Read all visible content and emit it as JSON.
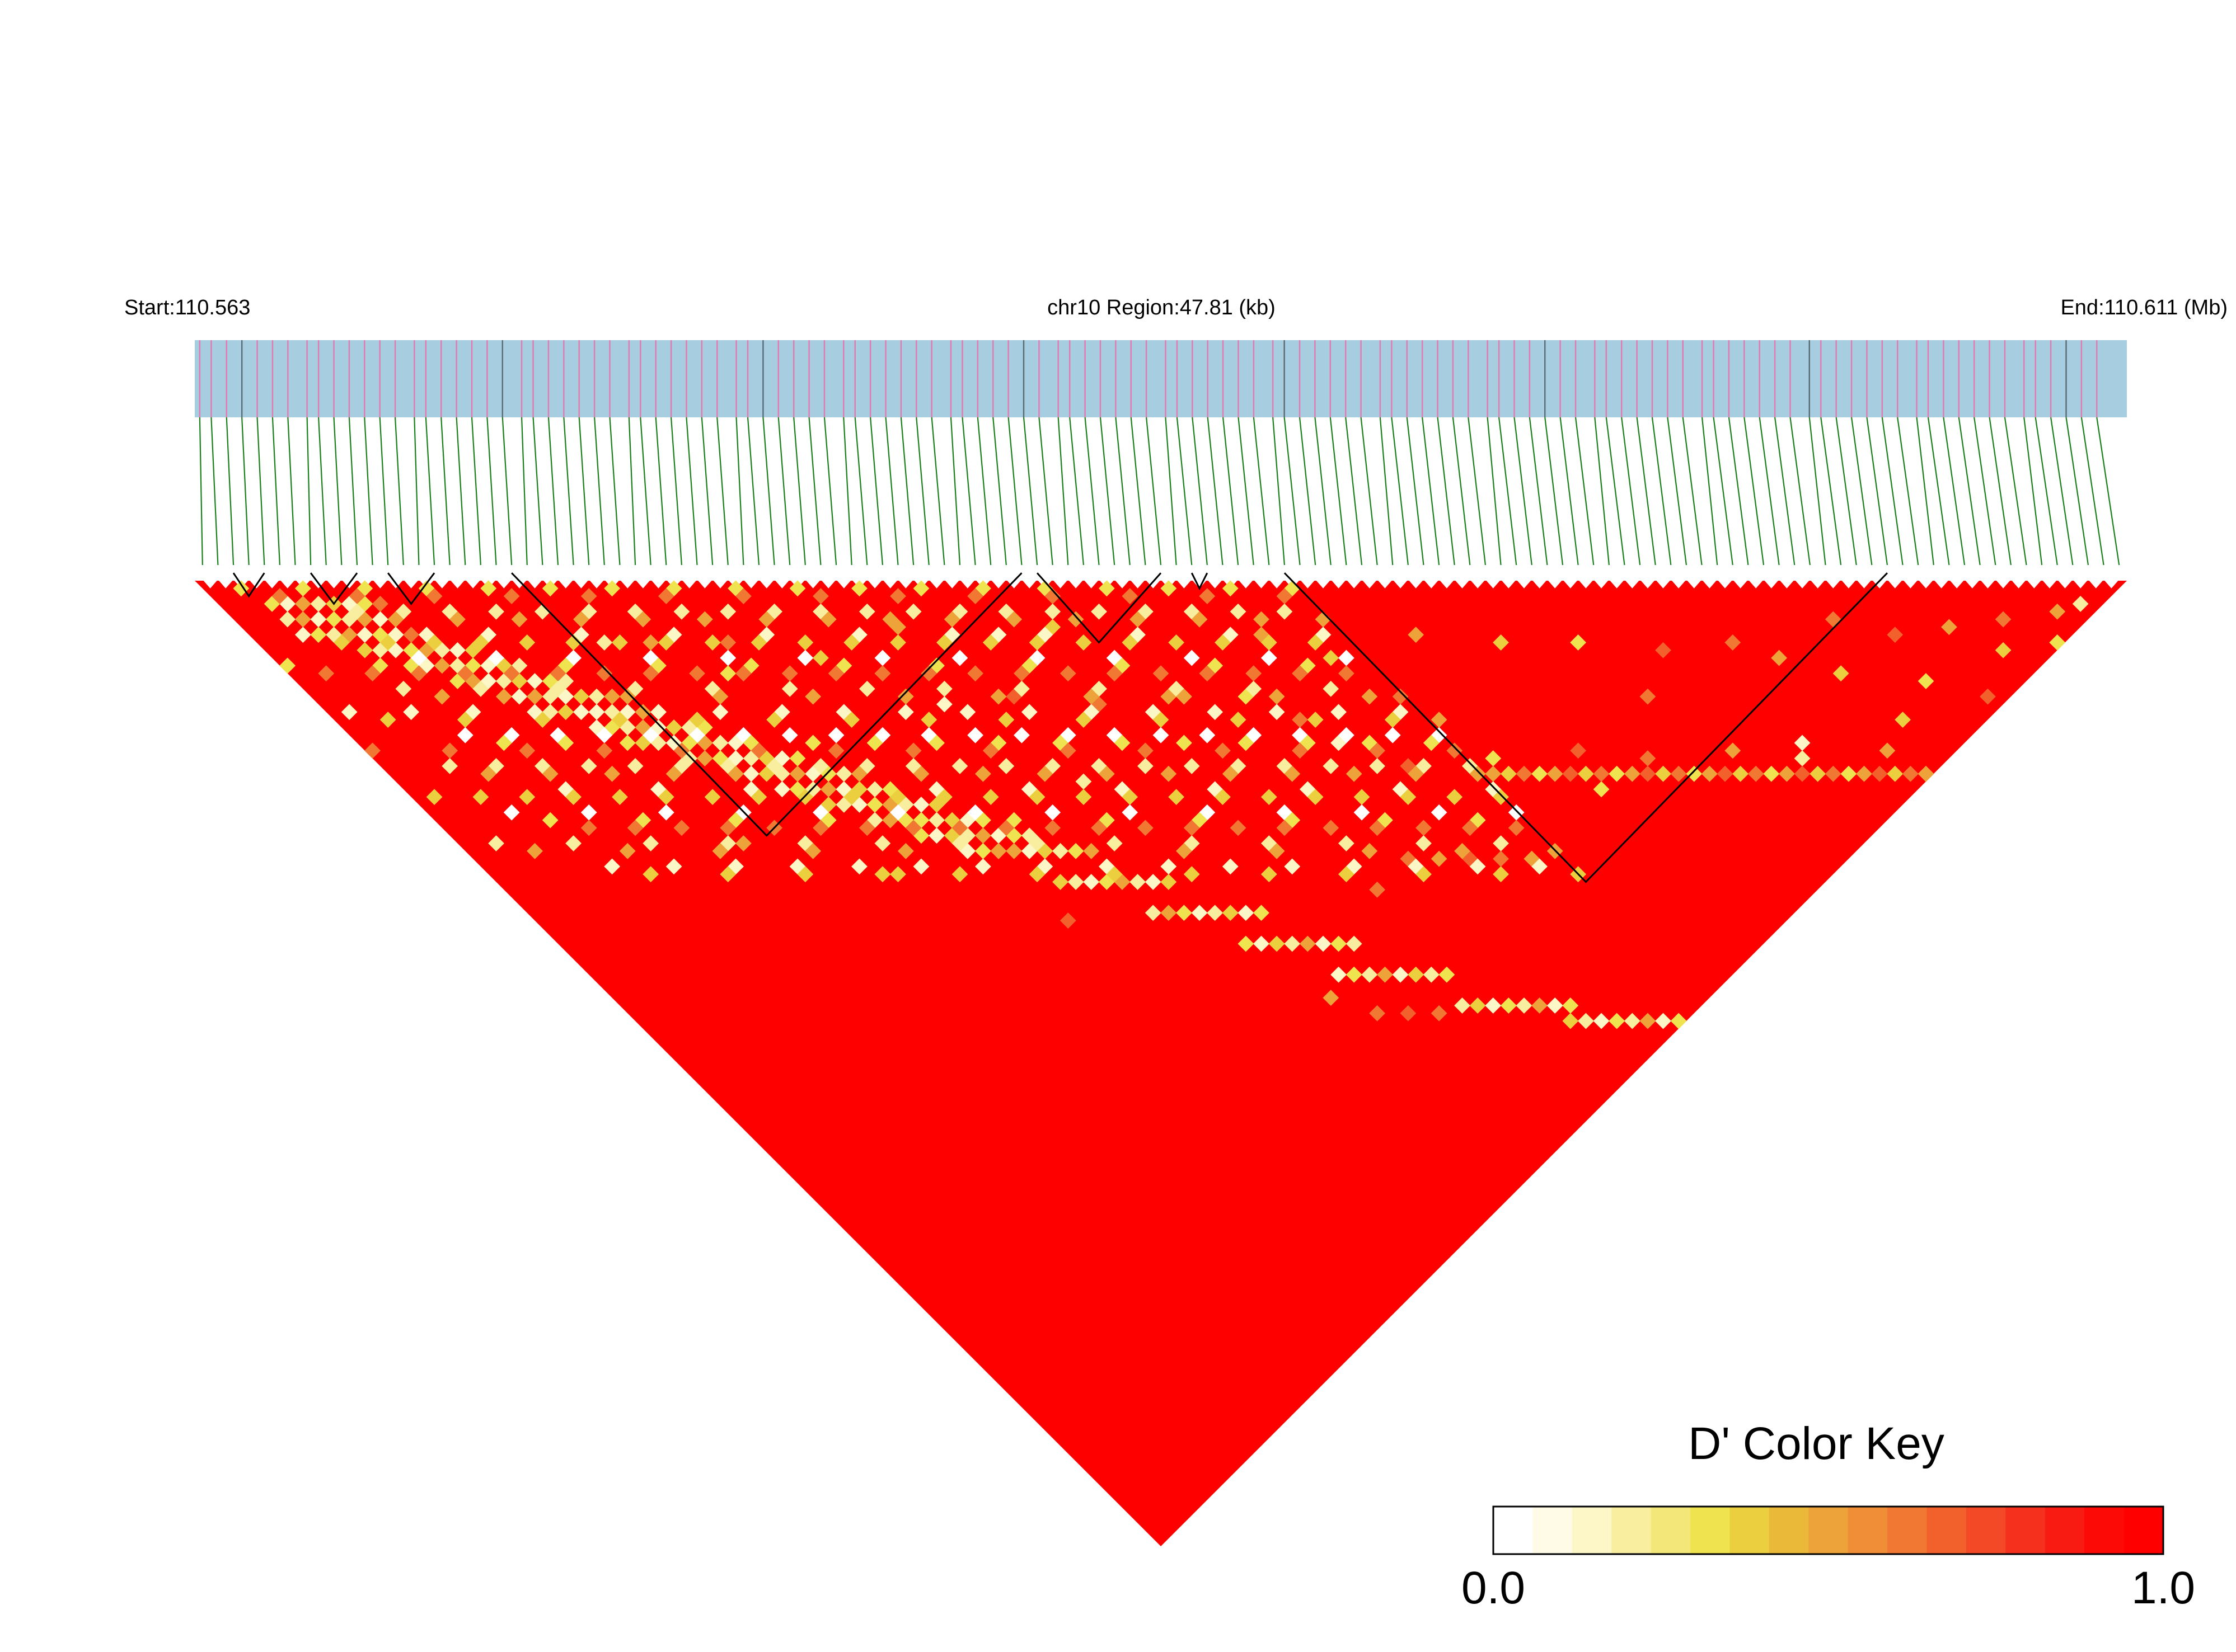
{
  "header": {
    "start_label": "Start:110.563",
    "region_label": "chr10 Region:47.81 (kb)",
    "end_label": "End:110.611 (Mb)"
  },
  "chart_data": {
    "type": "heatmap",
    "title": "",
    "chromosome": "chr10",
    "region_kb": 47.81,
    "start_mb": 110.563,
    "end_mb": 110.611,
    "snp_count": 125,
    "snp_positions_fraction": [
      0.0,
      0.004,
      0.008,
      0.012,
      0.016,
      0.02,
      0.024,
      0.028,
      0.032,
      0.036,
      0.04,
      0.046,
      0.048,
      0.053,
      0.06,
      0.066,
      0.072,
      0.078,
      0.084,
      0.09,
      0.096,
      0.102,
      0.108,
      0.114,
      0.12,
      0.126,
      0.132,
      0.138,
      0.144,
      0.15,
      0.156,
      0.162,
      0.168,
      0.174,
      0.18,
      0.186,
      0.192,
      0.198,
      0.204,
      0.21,
      0.216,
      0.222,
      0.228,
      0.234,
      0.24,
      0.246,
      0.252,
      0.258,
      0.264,
      0.27,
      0.276,
      0.282,
      0.288,
      0.294,
      0.3,
      0.306,
      0.312,
      0.318,
      0.324,
      0.33,
      0.336,
      0.342,
      0.348,
      0.354,
      0.36,
      0.366,
      0.372,
      0.378,
      0.384,
      0.39,
      0.396,
      0.402,
      0.408,
      0.414,
      0.42,
      0.426,
      0.432,
      0.438,
      0.444,
      0.45,
      0.456,
      0.462,
      0.468,
      0.474,
      0.48,
      0.486,
      0.492,
      0.498,
      0.504,
      0.51,
      0.516,
      0.522,
      0.528,
      0.534,
      0.54,
      0.546,
      0.552,
      0.558,
      0.564,
      0.57,
      0.576,
      0.582,
      0.588,
      0.594,
      0.6,
      0.606,
      0.612,
      0.618,
      0.624,
      0.63,
      0.636,
      0.642,
      0.648,
      0.654,
      0.66,
      0.666,
      0.672,
      0.678,
      0.684,
      0.69,
      0.696,
      0.702,
      0.708,
      0.714,
      0.72
    ],
    "ld_blocks": [
      [
        2,
        4
      ],
      [
        7,
        10
      ],
      [
        12,
        15
      ],
      [
        20,
        53
      ],
      [
        54,
        62
      ],
      [
        64,
        65
      ],
      [
        70,
        109
      ]
    ],
    "low_dprime_cells": [
      [
        3,
        6,
        0.3
      ],
      [
        4,
        7,
        0.1
      ],
      [
        5,
        8,
        0.5
      ],
      [
        6,
        9,
        0.2
      ],
      [
        7,
        10,
        0.4
      ],
      [
        8,
        11,
        0.1
      ],
      [
        9,
        12,
        0.3
      ],
      [
        10,
        13,
        0.6
      ],
      [
        3,
        8,
        0.2
      ],
      [
        4,
        9,
        0.5
      ],
      [
        5,
        10,
        0.1
      ],
      [
        6,
        11,
        0.3
      ],
      [
        7,
        12,
        0.2
      ],
      [
        8,
        13,
        0.5
      ],
      [
        9,
        14,
        0.1
      ],
      [
        10,
        15,
        0.4
      ],
      [
        4,
        11,
        0.3
      ],
      [
        5,
        12,
        0.2
      ],
      [
        6,
        13,
        0.5
      ],
      [
        7,
        14,
        0.1
      ],
      [
        8,
        15,
        0.3
      ],
      [
        9,
        16,
        0.2
      ],
      [
        10,
        17,
        0.6
      ],
      [
        11,
        18,
        0.1
      ],
      [
        6,
        15,
        0.4
      ],
      [
        7,
        16,
        0.2
      ],
      [
        8,
        17,
        0.1
      ],
      [
        9,
        18,
        0.3
      ],
      [
        10,
        19,
        0.5
      ],
      [
        11,
        20,
        0.2
      ],
      [
        12,
        21,
        0.1
      ],
      [
        13,
        22,
        0.4
      ],
      [
        8,
        19,
        0.3
      ],
      [
        9,
        20,
        0.1
      ],
      [
        10,
        21,
        0.5
      ],
      [
        11,
        22,
        0.2
      ],
      [
        12,
        23,
        0.3
      ],
      [
        13,
        24,
        0.1
      ],
      [
        14,
        25,
        0.4
      ],
      [
        15,
        26,
        0.2
      ],
      [
        10,
        23,
        0.3
      ],
      [
        11,
        24,
        0.5
      ],
      [
        12,
        25,
        0.1
      ],
      [
        13,
        26,
        0.2
      ],
      [
        14,
        27,
        0.4
      ],
      [
        15,
        28,
        0.1
      ],
      [
        16,
        29,
        0.3
      ],
      [
        17,
        30,
        0.2
      ],
      [
        12,
        27,
        0.5
      ],
      [
        13,
        28,
        0.1
      ],
      [
        14,
        29,
        0.3
      ],
      [
        15,
        30,
        0.2
      ],
      [
        16,
        31,
        0.1
      ],
      [
        17,
        32,
        0.4
      ],
      [
        18,
        33,
        0.2
      ],
      [
        19,
        34,
        0.5
      ],
      [
        14,
        31,
        0.2
      ],
      [
        15,
        32,
        0.4
      ],
      [
        16,
        33,
        0.1
      ],
      [
        17,
        34,
        0.3
      ],
      [
        18,
        35,
        0.2
      ],
      [
        19,
        36,
        0.1
      ],
      [
        20,
        37,
        0.5
      ],
      [
        21,
        38,
        0.3
      ],
      [
        16,
        35,
        0.1
      ],
      [
        17,
        36,
        0.3
      ],
      [
        18,
        37,
        0.2
      ],
      [
        19,
        38,
        0.5
      ],
      [
        20,
        39,
        0.1
      ],
      [
        21,
        40,
        0.4
      ],
      [
        22,
        41,
        0.2
      ],
      [
        23,
        42,
        0.3
      ],
      [
        18,
        39,
        0.4
      ],
      [
        19,
        40,
        0.2
      ],
      [
        20,
        41,
        0.1
      ],
      [
        21,
        42,
        0.3
      ],
      [
        22,
        43,
        0.5
      ],
      [
        23,
        44,
        0.2
      ],
      [
        24,
        45,
        0.1
      ],
      [
        25,
        46,
        0.4
      ],
      [
        20,
        43,
        0.2
      ],
      [
        21,
        44,
        0.5
      ],
      [
        22,
        45,
        0.3
      ],
      [
        23,
        46,
        0.1
      ],
      [
        24,
        47,
        0.2
      ],
      [
        25,
        48,
        0.4
      ],
      [
        26,
        49,
        0.1
      ],
      [
        27,
        50,
        0.3
      ],
      [
        22,
        47,
        0.3
      ],
      [
        23,
        48,
        0.1
      ],
      [
        24,
        49,
        0.4
      ],
      [
        25,
        50,
        0.2
      ],
      [
        26,
        51,
        0.5
      ],
      [
        27,
        52,
        0.1
      ],
      [
        28,
        53,
        0.3
      ],
      [
        29,
        54,
        0.2
      ],
      [
        24,
        51,
        0.1
      ],
      [
        25,
        52,
        0.3
      ],
      [
        26,
        53,
        0.2
      ],
      [
        27,
        54,
        0.5
      ],
      [
        28,
        55,
        0.1
      ],
      [
        29,
        56,
        0.4
      ],
      [
        30,
        57,
        0.2
      ],
      [
        31,
        58,
        0.3
      ],
      [
        26,
        55,
        0.4
      ],
      [
        27,
        56,
        0.2
      ],
      [
        28,
        57,
        0.1
      ],
      [
        29,
        58,
        0.3
      ],
      [
        30,
        59,
        0.5
      ],
      [
        31,
        60,
        0.2
      ],
      [
        32,
        61,
        0.1
      ],
      [
        33,
        62,
        0.4
      ],
      [
        28,
        59,
        0.2
      ],
      [
        29,
        60,
        0.5
      ],
      [
        30,
        61,
        0.3
      ],
      [
        31,
        62,
        0.1
      ],
      [
        32,
        63,
        0.2
      ],
      [
        33,
        64,
        0.4
      ],
      [
        34,
        65,
        0.1
      ],
      [
        35,
        66,
        0.3
      ],
      [
        30,
        63,
        0.3
      ],
      [
        31,
        64,
        0.1
      ],
      [
        32,
        65,
        0.4
      ],
      [
        33,
        66,
        0.2
      ],
      [
        34,
        67,
        0.5
      ],
      [
        35,
        68,
        0.1
      ],
      [
        36,
        69,
        0.3
      ],
      [
        37,
        70,
        0.2
      ],
      [
        32,
        67,
        0.1
      ],
      [
        33,
        68,
        0.3
      ],
      [
        34,
        69,
        0.2
      ],
      [
        35,
        70,
        0.5
      ],
      [
        36,
        71,
        0.1
      ],
      [
        37,
        72,
        0.4
      ],
      [
        38,
        73,
        0.2
      ],
      [
        39,
        74,
        0.3
      ],
      [
        36,
        75,
        0.4
      ],
      [
        37,
        76,
        0.2
      ],
      [
        38,
        77,
        0.1
      ],
      [
        39,
        78,
        0.3
      ],
      [
        40,
        79,
        0.5
      ],
      [
        41,
        80,
        0.2
      ],
      [
        42,
        81,
        0.1
      ],
      [
        43,
        82,
        0.4
      ],
      [
        40,
        83,
        0.2
      ],
      [
        41,
        84,
        0.5
      ],
      [
        42,
        85,
        0.3
      ],
      [
        43,
        86,
        0.1
      ],
      [
        44,
        87,
        0.2
      ],
      [
        45,
        88,
        0.4
      ],
      [
        46,
        89,
        0.1
      ],
      [
        47,
        90,
        0.3
      ],
      [
        44,
        91,
        0.3
      ],
      [
        45,
        92,
        0.1
      ],
      [
        46,
        93,
        0.4
      ],
      [
        47,
        94,
        0.2
      ],
      [
        48,
        95,
        0.5
      ],
      [
        49,
        96,
        0.1
      ],
      [
        50,
        97,
        0.3
      ],
      [
        51,
        98,
        0.2
      ],
      [
        48,
        99,
        0.1
      ],
      [
        49,
        100,
        0.3
      ],
      [
        50,
        101,
        0.2
      ],
      [
        51,
        102,
        0.5
      ],
      [
        52,
        103,
        0.1
      ],
      [
        53,
        104,
        0.4
      ],
      [
        54,
        105,
        0.2
      ],
      [
        55,
        106,
        0.3
      ],
      [
        54,
        109,
        0.2
      ],
      [
        55,
        110,
        0.4
      ],
      [
        56,
        111,
        0.1
      ],
      [
        57,
        112,
        0.3
      ],
      [
        58,
        113,
        0.2
      ],
      [
        59,
        114,
        0.5
      ],
      [
        60,
        115,
        0.1
      ],
      [
        61,
        116,
        0.3
      ],
      [
        60,
        117,
        0.4
      ],
      [
        61,
        118,
        0.2
      ],
      [
        62,
        119,
        0.1
      ],
      [
        63,
        120,
        0.3
      ],
      [
        64,
        121,
        0.2
      ],
      [
        65,
        122,
        0.5
      ],
      [
        66,
        123,
        0.1
      ],
      [
        67,
        124,
        0.3
      ],
      [
        22,
        30,
        0.2
      ],
      [
        25,
        33,
        0.5
      ],
      [
        28,
        40,
        0.3
      ],
      [
        30,
        38,
        0.6
      ],
      [
        35,
        45,
        0.4
      ],
      [
        38,
        50,
        0.6
      ],
      [
        42,
        48,
        0.5
      ],
      [
        45,
        60,
        0.7
      ],
      [
        48,
        55,
        0.1
      ],
      [
        50,
        66,
        0.6
      ],
      [
        52,
        58,
        0.4
      ],
      [
        55,
        70,
        0.5
      ],
      [
        58,
        63,
        0.7
      ],
      [
        60,
        75,
        0.3
      ],
      [
        62,
        80,
        0.6
      ],
      [
        65,
        72,
        0.5
      ],
      [
        66,
        90,
        0.7
      ],
      [
        68,
        78,
        0.4
      ],
      [
        70,
        85,
        0.6
      ],
      [
        72,
        95,
        0.3
      ],
      [
        75,
        82,
        0.5
      ],
      [
        78,
        100,
        0.7
      ],
      [
        80,
        88,
        0.4
      ],
      [
        82,
        105,
        0.6
      ],
      [
        85,
        93,
        0.3
      ],
      [
        88,
        110,
        0.5
      ],
      [
        90,
        99,
        0.7
      ],
      [
        92,
        115,
        0.2
      ],
      [
        95,
        103,
        0.6
      ],
      [
        98,
        120,
        0.5
      ],
      [
        100,
        112,
        0.4
      ],
      [
        103,
        108,
        0.6
      ],
      [
        105,
        118,
        0.3
      ],
      [
        108,
        123,
        0.7
      ],
      [
        110,
        116,
        0.5
      ],
      [
        112,
        121,
        0.4
      ],
      [
        114,
        119,
        0.6
      ],
      [
        116,
        124,
        0.3
      ],
      [
        118,
        122,
        0.5
      ],
      [
        120,
        123,
        0.2
      ],
      [
        40,
        56,
        0.1
      ],
      [
        44,
        70,
        0.2
      ],
      [
        56,
        96,
        0.6
      ],
      [
        63,
        84,
        0.1
      ],
      [
        71,
        89,
        0.5
      ],
      [
        77,
        104,
        0.3
      ],
      [
        86,
        101,
        0.6
      ],
      [
        93,
        114,
        0.1
      ],
      [
        97,
        107,
        0.5
      ],
      [
        101,
        119,
        0.4
      ],
      [
        106,
        113,
        0.7
      ],
      [
        15,
        45,
        0.6
      ],
      [
        18,
        52,
        0.5
      ],
      [
        26,
        64,
        0.4
      ],
      [
        34,
        78,
        0.7
      ],
      [
        46,
        100,
        0.5
      ]
    ],
    "diagonal_band_cells": [
      [
        70,
        95,
        0.3
      ],
      [
        71,
        96,
        0.5
      ],
      [
        72,
        97,
        0.4
      ],
      [
        73,
        98,
        0.6
      ],
      [
        74,
        99,
        0.3
      ],
      [
        75,
        100,
        0.5
      ],
      [
        76,
        101,
        0.7
      ],
      [
        77,
        102,
        0.4
      ],
      [
        78,
        103,
        0.6
      ],
      [
        79,
        104,
        0.3
      ],
      [
        80,
        105,
        0.5
      ],
      [
        81,
        106,
        0.7
      ],
      [
        82,
        107,
        0.4
      ],
      [
        83,
        108,
        0.6
      ],
      [
        84,
        109,
        0.3
      ],
      [
        85,
        110,
        0.5
      ],
      [
        86,
        111,
        0.7
      ],
      [
        87,
        112,
        0.4
      ],
      [
        88,
        113,
        0.6
      ],
      [
        89,
        114,
        0.3
      ],
      [
        90,
        115,
        0.5
      ],
      [
        91,
        116,
        0.7
      ],
      [
        92,
        117,
        0.4
      ],
      [
        93,
        118,
        0.6
      ],
      [
        94,
        119,
        0.3
      ],
      [
        95,
        120,
        0.5
      ],
      [
        96,
        121,
        0.7
      ],
      [
        97,
        122,
        0.4
      ],
      [
        98,
        123,
        0.6
      ],
      [
        99,
        124,
        0.5
      ],
      [
        60,
        96,
        0.6
      ],
      [
        62,
        98,
        0.5
      ],
      [
        64,
        100,
        0.7
      ],
      [
        66,
        102,
        0.6
      ],
      [
        68,
        104,
        0.5
      ],
      [
        48,
        104,
        0.6
      ],
      [
        50,
        106,
        0.7
      ],
      [
        52,
        108,
        0.6
      ]
    ],
    "legend": {
      "title": "D' Color Key",
      "min_label": "0.0",
      "max_label": "1.0",
      "colors": [
        "#ffffff",
        "#fffbe6",
        "#fdf6c6",
        "#f9ee9f",
        "#f4e77a",
        "#efe34f",
        "#eccf3f",
        "#ebb93a",
        "#eda33a",
        "#ef8e36",
        "#f07833",
        "#f2602c",
        "#f34926",
        "#f5311e",
        "#f81b12",
        "#fb0a06",
        "#ff0000"
      ]
    },
    "colors": {
      "track_fill": "#a6cde0",
      "snp_tick": "#e07ab0",
      "snp_tick_dark": "#5a6a72",
      "connector_line": "#1b7f1b",
      "high_dprime": "#ff0000",
      "block_outline": "#000000"
    }
  }
}
